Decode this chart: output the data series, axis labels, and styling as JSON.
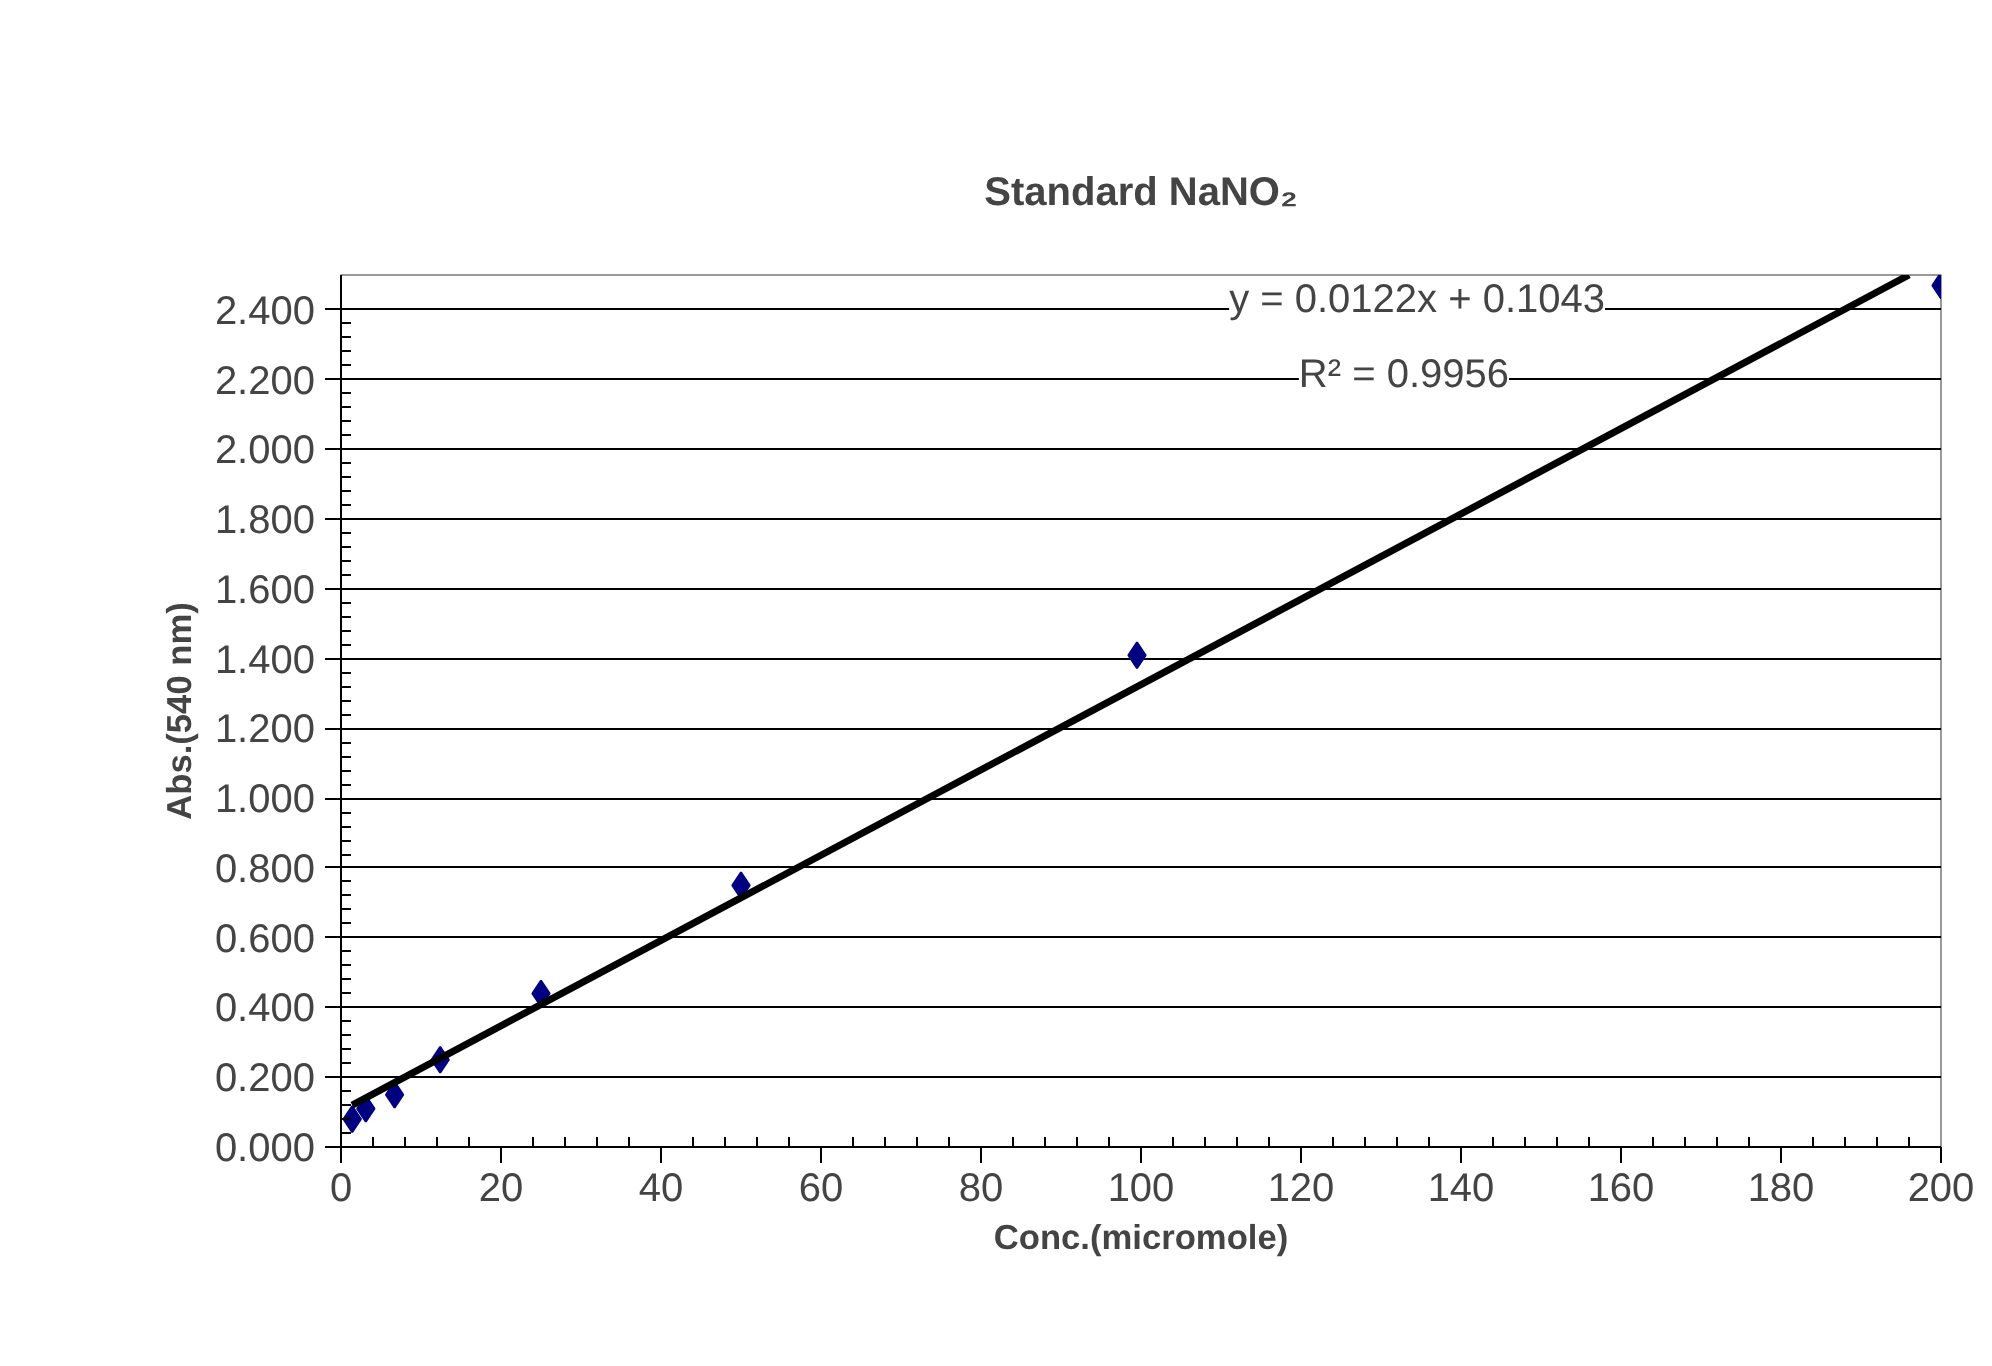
{
  "chart_data": {
    "type": "scatter",
    "title": "Standard NaNO₂",
    "xlabel": "Conc.(micromole)",
    "ylabel": "Abs.(540 nm)",
    "x": [
      1.4,
      3.1,
      6.7,
      12.4,
      25,
      50,
      99.5,
      200
    ],
    "series": [
      {
        "color": "#000080",
        "values": [
          0.08,
          0.11,
          0.15,
          0.25,
          0.44,
          0.75,
          1.41,
          2.47
        ],
        "marker": "diamond"
      },
      {
        "type": "line",
        "color": "#000000",
        "x": [
          1.4,
          196
        ],
        "values": [
          0.12,
          2.5
        ],
        "marker": "none",
        "line_style": "solid"
      }
    ],
    "annotations": [
      "y = 0.0122x + 0.1043",
      "R² = 0.9956"
    ],
    "xlim": [
      0,
      200
    ],
    "xticks": [
      0,
      20,
      40,
      60,
      80,
      100,
      120,
      140,
      160,
      180,
      200
    ],
    "ylim": [
      0,
      2.5
    ],
    "yticks": [
      {
        "value": 0,
        "label": "0.000"
      },
      {
        "value": 0.2,
        "label": "0.200"
      },
      {
        "value": 0.4,
        "label": "0.400"
      },
      {
        "value": 0.6,
        "label": "0.600"
      },
      {
        "value": 0.8,
        "label": "0.800"
      },
      {
        "value": 1.0,
        "label": "1.000"
      },
      {
        "value": 1.2,
        "label": "1.200"
      },
      {
        "value": 1.4,
        "label": "1.400"
      },
      {
        "value": 1.6,
        "label": "1.600"
      },
      {
        "value": 1.8,
        "label": "1.800"
      },
      {
        "value": 2.0,
        "label": "2.000"
      },
      {
        "value": 2.2,
        "label": "2.200"
      },
      {
        "value": 2.4,
        "label": "2.400"
      }
    ],
    "grid": "y"
  }
}
